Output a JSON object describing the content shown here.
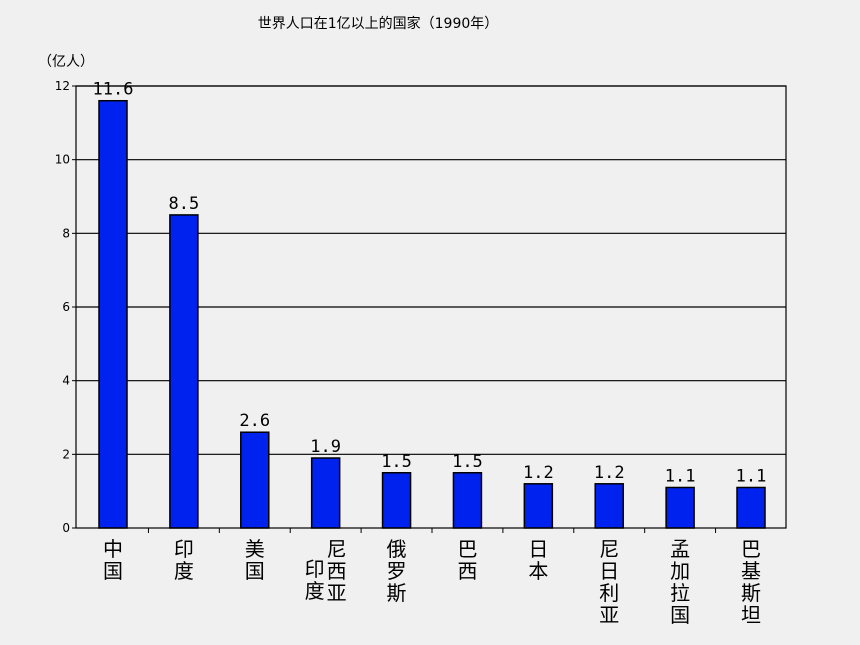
{
  "chart_data": {
    "type": "bar",
    "title": "世界人口在1亿以上的国家（1990年）",
    "unit_label": "（亿人）",
    "xlabel": "",
    "ylabel": "",
    "ylim": [
      0,
      12
    ],
    "yticks": [
      0,
      2,
      4,
      6,
      8,
      10,
      12
    ],
    "grid": true,
    "bar_color": "#0022ee",
    "categories": [
      "中国",
      "印度",
      "美国",
      "印度尼西亚",
      "俄罗斯",
      "巴西",
      "日本",
      "尼日利亚",
      "孟加拉国",
      "巴基斯坦"
    ],
    "category_lines": [
      [
        "中国"
      ],
      [
        "印度"
      ],
      [
        "美国"
      ],
      [
        "印度",
        "尼西亚"
      ],
      [
        "俄罗斯"
      ],
      [
        "巴西"
      ],
      [
        "日本"
      ],
      [
        "尼日利亚"
      ],
      [
        "孟加拉国"
      ],
      [
        "巴基斯坦"
      ]
    ],
    "values": [
      11.6,
      8.5,
      2.6,
      1.9,
      1.5,
      1.5,
      1.2,
      1.2,
      1.1,
      1.1
    ],
    "data_labels": [
      "11.6",
      "8.5",
      "2.6",
      "1.9",
      "1.5",
      "1.5",
      "1.2",
      "1.2",
      "1.1",
      "1.1"
    ]
  }
}
